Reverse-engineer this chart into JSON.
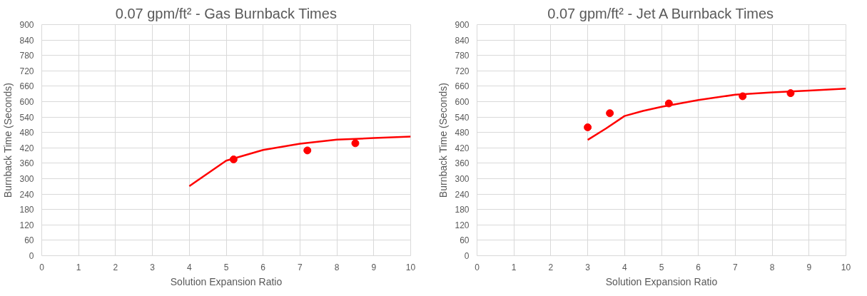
{
  "chart_data": [
    {
      "type": "scatter",
      "title": "0.07 gpm/ft² - Gas Burnback Times",
      "xlabel": "Solution Expansion Ratio",
      "ylabel": "Burnback Time (Seconds)",
      "xlim": [
        0,
        10
      ],
      "xticks": [
        0,
        1,
        2,
        3,
        4,
        5,
        6,
        7,
        8,
        9,
        10
      ],
      "ylim": [
        0,
        900
      ],
      "yticks": [
        0,
        60,
        120,
        180,
        240,
        300,
        360,
        420,
        480,
        540,
        600,
        660,
        720,
        780,
        840,
        900
      ],
      "grid": true,
      "series": [
        {
          "type": "line",
          "color": "#ff0000",
          "x": [
            4,
            5,
            6,
            7,
            8,
            9,
            10
          ],
          "values": [
            271,
            370,
            412,
            436,
            452,
            458,
            464
          ]
        },
        {
          "marker": "circle",
          "color": "#ff0000",
          "x": [
            5.2,
            7.2,
            8.5
          ],
          "values": [
            375,
            410,
            438
          ]
        }
      ]
    },
    {
      "type": "scatter",
      "title": "0.07 gpm/ft² - Jet A Burnback Times",
      "xlabel": "Solution Expansion Ratio",
      "ylabel": "Burnback Time (Seconds)",
      "xlim": [
        0,
        10
      ],
      "xticks": [
        0,
        1,
        2,
        3,
        4,
        5,
        6,
        7,
        8,
        9,
        10
      ],
      "ylim": [
        0,
        900
      ],
      "yticks": [
        0,
        60,
        120,
        180,
        240,
        300,
        360,
        420,
        480,
        540,
        600,
        660,
        720,
        780,
        840,
        900
      ],
      "grid": true,
      "series": [
        {
          "type": "line",
          "color": "#ff0000",
          "x": [
            3,
            3.5,
            4,
            4.5,
            5,
            6,
            7,
            8,
            9,
            10
          ],
          "values": [
            451,
            496,
            544,
            564,
            580,
            606,
            627,
            636,
            643,
            651
          ]
        },
        {
          "marker": "circle",
          "color": "#ff0000",
          "x": [
            3,
            3.6,
            5.2,
            7.2,
            8.5
          ],
          "values": [
            500,
            555,
            593,
            621,
            633
          ]
        }
      ]
    }
  ]
}
